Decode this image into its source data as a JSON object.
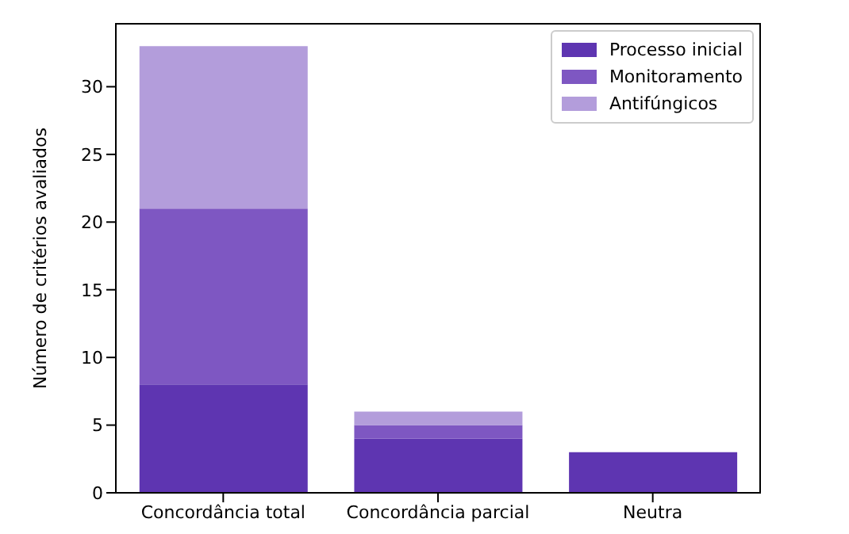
{
  "chart_data": {
    "type": "bar",
    "stacked": true,
    "categories": [
      "Concordância total",
      "Concordância parcial",
      "Neutra"
    ],
    "series": [
      {
        "name": "Processo inicial",
        "color": "#5e35b1",
        "values": [
          8,
          4,
          3
        ]
      },
      {
        "name": "Monitoramento",
        "color": "#7e57c2",
        "values": [
          13,
          1,
          0
        ]
      },
      {
        "name": "Antifúngicos",
        "color": "#b39ddb",
        "values": [
          12,
          1,
          0
        ]
      }
    ],
    "ylabel": "Número de critérios avaliados",
    "ylim": [
      0,
      34.65
    ],
    "yticks": [
      0,
      5,
      10,
      15,
      20,
      25,
      30
    ],
    "legend": "top right",
    "grid": false
  }
}
